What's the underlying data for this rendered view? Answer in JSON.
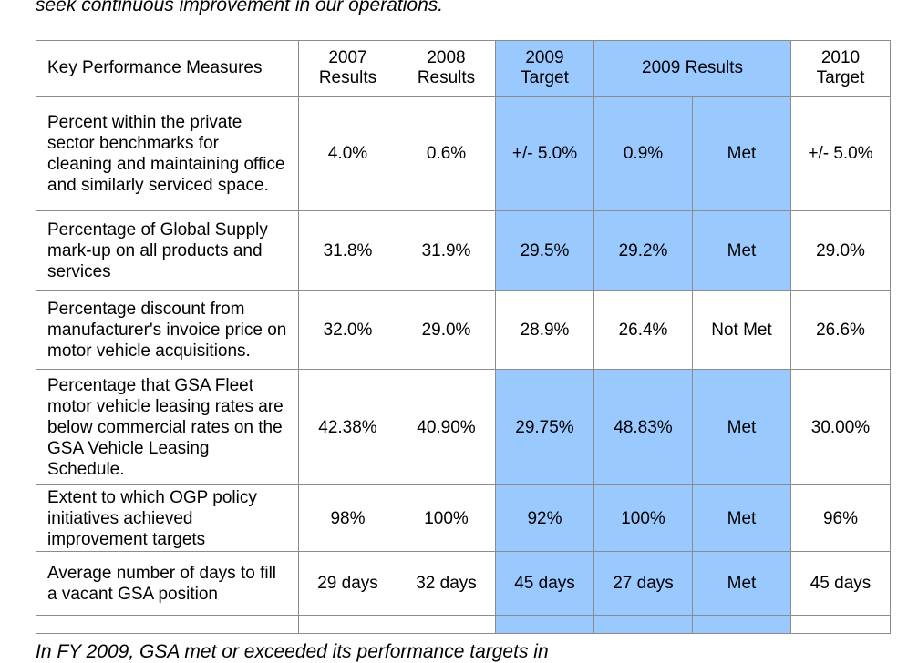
{
  "intro_text": "seek continuous improvement in our operations.",
  "outro_text": "In FY 2009, GSA met or exceeded its performance targets in",
  "colors": {
    "highlight": "#99c9ff",
    "border": "#8c8c8c"
  },
  "table": {
    "headers": [
      {
        "line1": "Key Performance Measures",
        "line2": ""
      },
      {
        "line1": "2007",
        "line2": "Results"
      },
      {
        "line1": "2008",
        "line2": "Results"
      },
      {
        "line1": "2009",
        "line2": "Target"
      },
      {
        "line1": "2009 Results",
        "line2": ""
      },
      {
        "line1": "2010",
        "line2": "Target"
      }
    ],
    "rows": [
      {
        "measure": "Percent within the private sector benchmarks for cleaning and maintaining office and similarly serviced space.",
        "r2007": "4.0%",
        "r2008": "0.6%",
        "t2009": "+/- 5.0%",
        "r2009": "0.9%",
        "status": "Met",
        "t2010": "+/- 5.0%"
      },
      {
        "measure": "Percentage of Global Supply mark-up on all products and services",
        "r2007": "31.8%",
        "r2008": "31.9%",
        "t2009": "29.5%",
        "r2009": "29.2%",
        "status": "Met",
        "t2010": "29.0%"
      },
      {
        "measure": "Percentage discount from manufacturer's invoice price on motor vehicle acquisitions.",
        "r2007": "32.0%",
        "r2008": "29.0%",
        "t2009": "28.9%",
        "r2009": "26.4%",
        "status": "Not Met",
        "t2010": "26.6%"
      },
      {
        "measure": "Percentage that GSA Fleet motor vehicle leasing rates are below commercial rates on the GSA Vehicle Leasing Schedule.",
        "r2007": "42.38%",
        "r2008": "40.90%",
        "t2009": "29.75%",
        "r2009": "48.83%",
        "status": "Met",
        "t2010": "30.00%"
      },
      {
        "measure": "Extent to which OGP policy initiatives achieved improvement targets",
        "r2007": "98%",
        "r2008": "100%",
        "t2009": "92%",
        "r2009": "100%",
        "status": "Met",
        "t2010": "96%"
      },
      {
        "measure": "Average number of days to fill a vacant GSA position",
        "r2007": "29 days",
        "r2008": "32 days",
        "t2009": "45 days",
        "r2009": "27 days",
        "status": "Met",
        "t2010": "45 days"
      }
    ]
  }
}
